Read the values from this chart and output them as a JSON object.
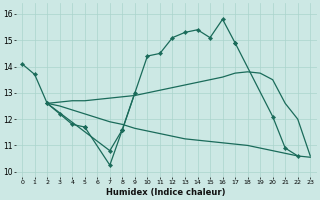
{
  "bg_color": "#cce8e4",
  "grid_color": "#aad4cc",
  "line_color": "#1a6b5a",
  "xlabel": "Humidex (Indice chaleur)",
  "xlim": [
    -0.5,
    23.5
  ],
  "ylim": [
    9.8,
    16.4
  ],
  "yticks": [
    10,
    11,
    12,
    13,
    14,
    15,
    16
  ],
  "xticks": [
    0,
    1,
    2,
    3,
    4,
    5,
    6,
    7,
    8,
    9,
    10,
    11,
    12,
    13,
    14,
    15,
    16,
    17,
    18,
    19,
    20,
    21,
    22,
    23
  ],
  "line1_segments": [
    {
      "x": [
        0,
        1,
        2,
        3,
        4,
        5
      ],
      "y": [
        14.1,
        13.7,
        12.6,
        12.2,
        11.8,
        11.7
      ]
    },
    {
      "x": [
        5,
        7,
        8
      ],
      "y": [
        11.7,
        10.25,
        11.6
      ]
    },
    {
      "x": [
        8,
        10,
        11,
        12,
        13,
        14,
        15,
        16,
        17
      ],
      "y": [
        11.6,
        14.4,
        14.5,
        15.1,
        15.3,
        15.4,
        15.1,
        15.8,
        14.9
      ]
    },
    {
      "x": [
        17,
        20,
        21,
        22
      ],
      "y": [
        14.9,
        12.1,
        10.9,
        10.6
      ]
    }
  ],
  "line2_segments": [
    {
      "x": [
        2,
        7,
        8,
        9
      ],
      "y": [
        12.6,
        10.8,
        11.6,
        13.0
      ]
    }
  ],
  "line3_x": [
    2,
    3,
    4,
    5,
    6,
    7,
    8,
    9,
    10,
    11,
    12,
    13,
    14,
    15,
    16,
    17,
    18,
    19,
    20,
    21,
    22,
    23
  ],
  "line3_y": [
    12.6,
    12.65,
    12.7,
    12.7,
    12.75,
    12.8,
    12.85,
    12.9,
    13.0,
    13.1,
    13.2,
    13.3,
    13.4,
    13.5,
    13.6,
    13.75,
    13.8,
    13.75,
    13.5,
    12.6,
    12.0,
    10.6
  ],
  "line4_x": [
    2,
    3,
    4,
    5,
    6,
    7,
    8,
    9,
    10,
    11,
    12,
    13,
    14,
    15,
    16,
    17,
    18,
    19,
    20,
    21,
    22,
    23
  ],
  "line4_y": [
    12.6,
    12.5,
    12.35,
    12.2,
    12.05,
    11.9,
    11.8,
    11.65,
    11.55,
    11.45,
    11.35,
    11.25,
    11.2,
    11.15,
    11.1,
    11.05,
    11.0,
    10.9,
    10.8,
    10.7,
    10.6,
    10.55
  ]
}
